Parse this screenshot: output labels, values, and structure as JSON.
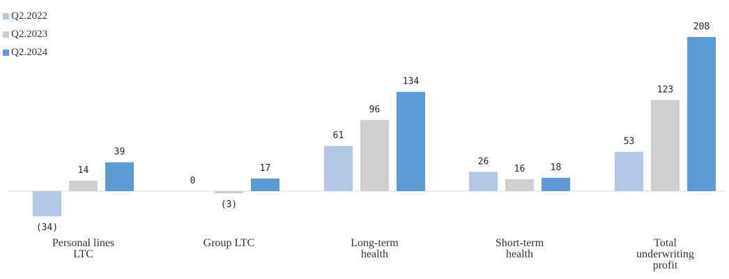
{
  "chart_data": {
    "type": "bar",
    "categories": [
      [
        "Personal lines",
        "LTC"
      ],
      [
        "Group LTC"
      ],
      [
        "Long-term",
        "health"
      ],
      [
        "Short-term",
        "health"
      ],
      [
        "Total",
        "underwriting",
        "profit"
      ]
    ],
    "series": [
      {
        "name": "Q2.2022",
        "color": "#b4c7e7",
        "values": [
          -34,
          0,
          61,
          26,
          53
        ],
        "labels": [
          "(34)",
          "0",
          "61",
          "26",
          "53"
        ]
      },
      {
        "name": "Q2.2023",
        "color": "#d0cece",
        "values": [
          14,
          -3,
          96,
          16,
          123
        ],
        "labels": [
          "14",
          "(3)",
          "96",
          "16",
          "123"
        ]
      },
      {
        "name": "Q2.2024",
        "color": "#5b9bd5",
        "values": [
          39,
          17,
          134,
          18,
          208
        ],
        "labels": [
          "39",
          "17",
          "134",
          "18",
          "208"
        ]
      }
    ],
    "title": "",
    "xlabel": "",
    "ylabel": "",
    "ylim": [
      -40,
      220
    ],
    "grid": false,
    "legend_position": "top-left"
  }
}
